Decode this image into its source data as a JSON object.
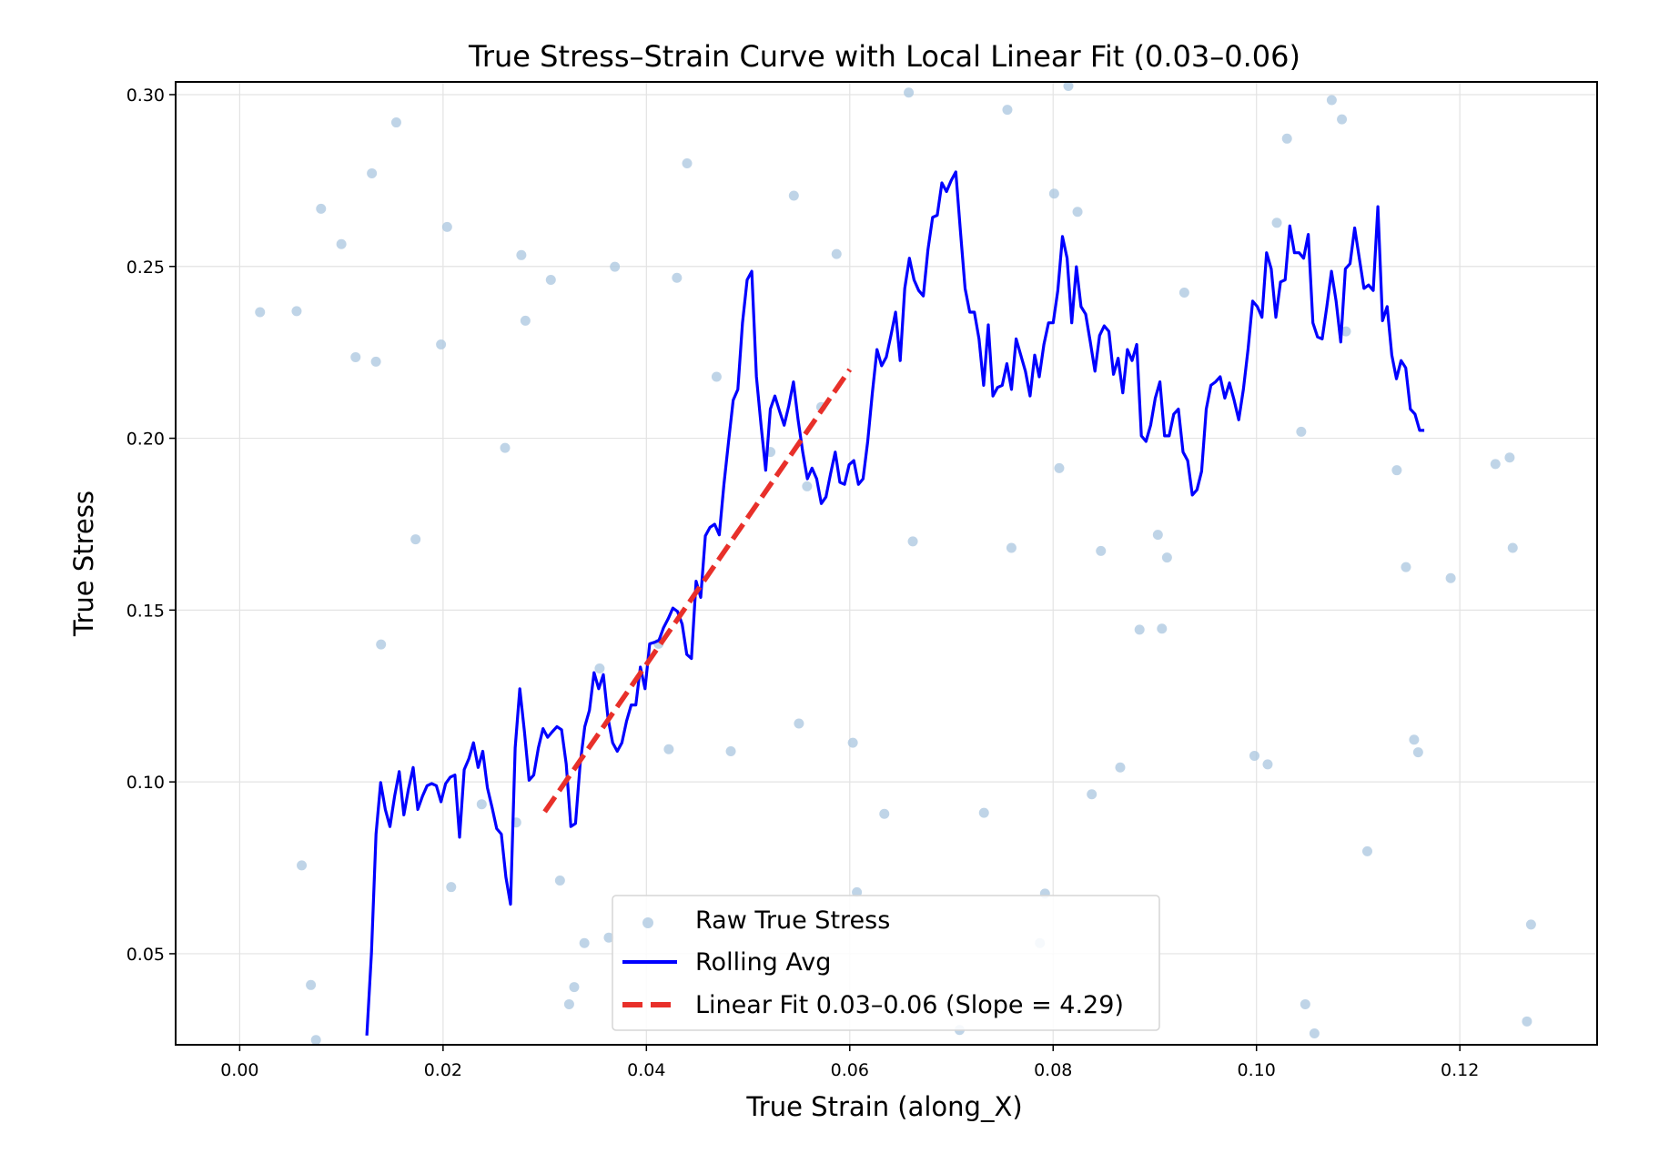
{
  "chart_data": {
    "type": "line",
    "title": "True Stress–Strain Curve with Local Linear Fit (0.03–0.06)",
    "xlabel": "True Strain (along_X)",
    "ylabel": "True Stress",
    "xlim": [
      -0.0063,
      0.1335
    ],
    "ylim": [
      0.0235,
      0.3037
    ],
    "xticks": [
      0.0,
      0.02,
      0.04,
      0.06,
      0.08,
      0.1,
      0.12
    ],
    "xtick_labels": [
      "0.00",
      "0.02",
      "0.04",
      "0.06",
      "0.08",
      "0.10",
      "0.12"
    ],
    "yticks": [
      0.05,
      0.1,
      0.15,
      0.2,
      0.25,
      0.3
    ],
    "ytick_labels": [
      "0.05",
      "0.10",
      "0.15",
      "0.20",
      "0.25",
      "0.30"
    ],
    "grid": true,
    "legend_position": "lower-center",
    "legend": [
      "Raw True Stress",
      "Rolling Avg",
      "Linear Fit 0.03–0.06 (Slope = 4.29)"
    ],
    "colors": {
      "raw": "#a9c5df",
      "rolling": "#0000ff",
      "fit": "#e8302a"
    },
    "series": [
      {
        "name": "Raw True Stress",
        "kind": "scatter",
        "x": [
          0.002,
          0.0056,
          0.0061,
          0.007,
          0.0075,
          0.008,
          0.01,
          0.0114,
          0.013,
          0.0134,
          0.0139,
          0.0154,
          0.0173,
          0.0198,
          0.0204,
          0.0208,
          0.0238,
          0.0261,
          0.0272,
          0.0277,
          0.0281,
          0.0306,
          0.0315,
          0.0324,
          0.0329,
          0.0339,
          0.0354,
          0.0363,
          0.0369,
          0.0412,
          0.0422,
          0.043,
          0.044,
          0.0469,
          0.0483,
          0.0522,
          0.0545,
          0.055,
          0.0558,
          0.0572,
          0.0587,
          0.0603,
          0.0607,
          0.0634,
          0.0658,
          0.0662,
          0.0708,
          0.0732,
          0.0755,
          0.0759,
          0.0787,
          0.0792,
          0.0801,
          0.0806,
          0.0815,
          0.0824,
          0.0838,
          0.0847,
          0.0866,
          0.0885,
          0.0903,
          0.0907,
          0.0912,
          0.0929,
          0.0998,
          0.1011,
          0.102,
          0.103,
          0.1044,
          0.1048,
          0.1057,
          0.1074,
          0.1084,
          0.1088,
          0.1109,
          0.1138,
          0.1147,
          0.1155,
          0.1159,
          0.1191,
          0.1235,
          0.1249,
          0.1252,
          0.1266,
          0.127
        ],
        "y": [
          0.2367,
          0.237,
          0.0757,
          0.0409,
          0.0249,
          0.2668,
          0.2565,
          0.2236,
          0.2771,
          0.2223,
          0.14,
          0.2919,
          0.1706,
          0.2273,
          0.2615,
          0.0694,
          0.0935,
          0.1972,
          0.0882,
          0.2533,
          0.2342,
          0.2461,
          0.0713,
          0.0353,
          0.0403,
          0.0531,
          0.133,
          0.0547,
          0.2499,
          0.1402,
          0.1095,
          0.2467,
          0.28,
          0.2179,
          0.1089,
          0.196,
          0.2706,
          0.117,
          0.186,
          0.2091,
          0.2536,
          0.1114,
          0.0679,
          0.0907,
          0.3006,
          0.17,
          0.0278,
          0.091,
          0.2956,
          0.1681,
          0.0531,
          0.0675,
          0.2712,
          0.1913,
          0.3025,
          0.2659,
          0.0964,
          0.1672,
          0.1042,
          0.1443,
          0.1719,
          0.1446,
          0.1653,
          0.2424,
          0.1076,
          0.1051,
          0.2627,
          0.2872,
          0.2019,
          0.0353,
          0.0268,
          0.2984,
          0.2928,
          0.2311,
          0.0798,
          0.1907,
          0.1625,
          0.1123,
          0.1086,
          0.1593,
          0.1925,
          0.1944,
          0.1681,
          0.0303,
          0.0585
        ]
      },
      {
        "name": "Rolling Avg",
        "kind": "line",
        "x_range": [
          0.0125,
          0.1165
        ],
        "y": [
          0.0262,
          0.0503,
          0.0848,
          0.0998,
          0.092,
          0.087,
          0.0958,
          0.103,
          0.0904,
          0.098,
          0.1042,
          0.092,
          0.0958,
          0.0989,
          0.0995,
          0.0989,
          0.0942,
          0.0995,
          0.1014,
          0.102,
          0.0839,
          0.1036,
          0.1067,
          0.1114,
          0.1042,
          0.1089,
          0.0983,
          0.0926,
          0.0864,
          0.0848,
          0.0723,
          0.0644,
          0.1099,
          0.1271,
          0.1146,
          0.1005,
          0.102,
          0.1099,
          0.1155,
          0.113,
          0.1146,
          0.1161,
          0.1152,
          0.1052,
          0.087,
          0.0879,
          0.1052,
          0.1161,
          0.1208,
          0.1318,
          0.1271,
          0.1312,
          0.1186,
          0.1114,
          0.1089,
          0.1114,
          0.1177,
          0.1224,
          0.1224,
          0.1334,
          0.1271,
          0.1402,
          0.1406,
          0.1412,
          0.1449,
          0.1475,
          0.1506,
          0.1496,
          0.1459,
          0.1371,
          0.1359,
          0.1584,
          0.1537,
          0.1716,
          0.1741,
          0.175,
          0.1719,
          0.1866,
          0.1991,
          0.2111,
          0.2142,
          0.2336,
          0.2461,
          0.2486,
          0.2179,
          0.2038,
          0.1907,
          0.2085,
          0.2123,
          0.2079,
          0.2038,
          0.2095,
          0.2164,
          0.2054,
          0.196,
          0.1882,
          0.1913,
          0.1882,
          0.181,
          0.1829,
          0.1897,
          0.196,
          0.1872,
          0.1866,
          0.1923,
          0.1935,
          0.1866,
          0.1882,
          0.1991,
          0.2132,
          0.2258,
          0.2211,
          0.2236,
          0.2299,
          0.2367,
          0.2226,
          0.2436,
          0.2524,
          0.2461,
          0.243,
          0.2414,
          0.2549,
          0.2643,
          0.2649,
          0.2743,
          0.2718,
          0.275,
          0.2775,
          0.2602,
          0.2436,
          0.2367,
          0.2367,
          0.2289,
          0.2154,
          0.233,
          0.2123,
          0.2148,
          0.2154,
          0.2217,
          0.2142,
          0.2289,
          0.2242,
          0.2195,
          0.2123,
          0.2242,
          0.2179,
          0.2273,
          0.2336,
          0.2336,
          0.243,
          0.2587,
          0.2524,
          0.2336,
          0.2499,
          0.2383,
          0.2361,
          0.228,
          0.2195,
          0.2299,
          0.2327,
          0.2311,
          0.2186,
          0.2233,
          0.2132,
          0.2258,
          0.2226,
          0.2273,
          0.2007,
          0.1991,
          0.2038,
          0.2117,
          0.2164,
          0.2007,
          0.2007,
          0.207,
          0.2085,
          0.196,
          0.1935,
          0.1835,
          0.185,
          0.1904,
          0.2085,
          0.2154,
          0.2164,
          0.2179,
          0.2117,
          0.2161,
          0.2111,
          0.2054,
          0.2142,
          0.2258,
          0.2399,
          0.2383,
          0.2352,
          0.254,
          0.2493,
          0.2352,
          0.2455,
          0.2461,
          0.2618,
          0.254,
          0.254,
          0.2524,
          0.2593,
          0.2336,
          0.2295,
          0.2289,
          0.2383,
          0.2486,
          0.2399,
          0.228,
          0.2493,
          0.2508,
          0.2612,
          0.2524,
          0.2436,
          0.2446,
          0.243,
          0.2674,
          0.2342,
          0.2383,
          0.2242,
          0.2173,
          0.2226,
          0.2205,
          0.2085,
          0.207,
          0.2023,
          0.2023
        ]
      },
      {
        "name": "Linear Fit 0.03–0.06 (Slope = 4.29)",
        "kind": "line",
        "slope": 4.29,
        "x": [
          0.03,
          0.06
        ],
        "y": [
          0.0913,
          0.22
        ]
      }
    ]
  }
}
